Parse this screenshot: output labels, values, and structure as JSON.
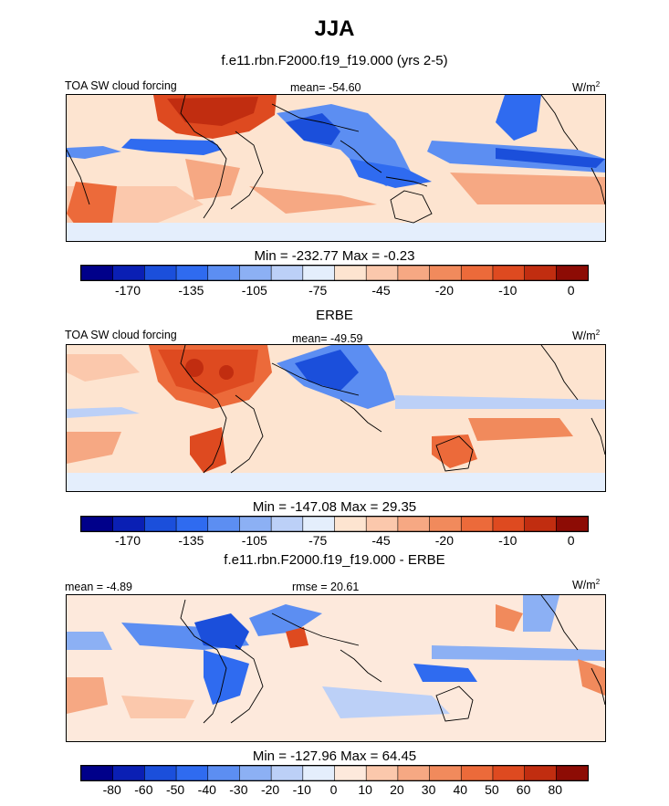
{
  "header": {
    "season": "JJA",
    "subtitle": "f.e11.rbn.F2000.f19_f19.000 (yrs 2-5)"
  },
  "colors": {
    "palette_sw": [
      "#00008a",
      "#0a1fb4",
      "#1b4fdb",
      "#2f6bf0",
      "#5c8ef2",
      "#8cb0f4",
      "#bcd0f7",
      "#e4eefc",
      "#fde4d0",
      "#fbc8ac",
      "#f6a883",
      "#f18a5c",
      "#ec6a3a",
      "#de4a20",
      "#c12d10",
      "#8d0c05"
    ],
    "palette_diff": [
      "#00008a",
      "#0a1fb4",
      "#1b4fdb",
      "#2f6bf0",
      "#5c8ef2",
      "#8cb0f4",
      "#bcd0f7",
      "#e4eefc",
      "#fde9dc",
      "#fbc8ac",
      "#f6a883",
      "#f18a5c",
      "#ec6a3a",
      "#de4a20",
      "#c12d10",
      "#8d0c05"
    ]
  },
  "chart_data": [
    {
      "type": "heatmap",
      "panel_left_label": "TOA SW cloud forcing",
      "stat_label": "mean= -54.60",
      "units_base": "W/m",
      "units_exp": "2",
      "minmax": "Min = -232.77 Max =  -0.23",
      "colorbar_ticks": [
        "-170",
        "-135",
        "-105",
        "-75",
        "-45",
        "-20",
        "-10",
        "0"
      ],
      "stats": {
        "mean": -54.6,
        "min": -232.77,
        "max": -0.23
      }
    },
    {
      "type": "heatmap",
      "panel_title": "ERBE",
      "panel_left_label": "TOA SW cloud forcing",
      "stat_label": "mean= -49.59",
      "units_base": "W/m",
      "units_exp": "2",
      "minmax": "Min = -147.08 Max =  29.35",
      "colorbar_ticks": [
        "-170",
        "-135",
        "-105",
        "-75",
        "-45",
        "-20",
        "-10",
        "0"
      ],
      "stats": {
        "mean": -49.59,
        "min": -147.08,
        "max": 29.35
      }
    },
    {
      "type": "heatmap",
      "panel_title": "f.e11.rbn.F2000.f19_f19.000 - ERBE",
      "panel_left_label": "mean =  -4.89",
      "stat_label": "rmse =  20.61",
      "units_base": "W/m",
      "units_exp": "2",
      "minmax": "Min = -127.96 Max =  64.45",
      "colorbar_ticks": [
        "-80",
        "-60",
        "-50",
        "-40",
        "-30",
        "-20",
        "-10",
        "0",
        "10",
        "20",
        "30",
        "40",
        "50",
        "60",
        "80"
      ],
      "stats": {
        "mean": -4.89,
        "rmse": 20.61,
        "min": -127.96,
        "max": 64.45
      }
    }
  ]
}
